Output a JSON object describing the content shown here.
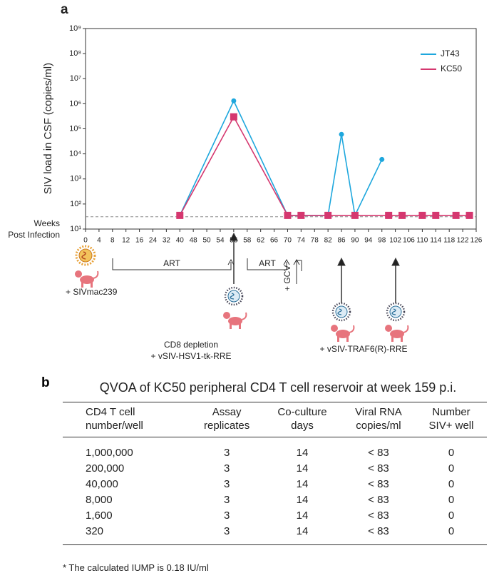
{
  "panel_labels": [
    "a",
    "b"
  ],
  "chart_data": {
    "type": "line",
    "y_label": "SIV load in CSF (copies/ml)",
    "x_label": [
      "Weeks",
      "Post Infection"
    ],
    "log_y": true,
    "ylim": [
      10,
      1000000000
    ],
    "yticks": [
      {
        "value": 10,
        "label": "10¹"
      },
      {
        "value": 100,
        "label": "10²"
      },
      {
        "value": 1000,
        "label": "10³"
      },
      {
        "value": 10000,
        "label": "10⁴"
      },
      {
        "value": 100000,
        "label": "10⁵"
      },
      {
        "value": 1000000,
        "label": "10⁶"
      },
      {
        "value": 10000000,
        "label": "10⁷"
      },
      {
        "value": 100000000,
        "label": "10⁸"
      },
      {
        "value": 1000000000,
        "label": "10⁹"
      }
    ],
    "xlim": [
      0,
      126
    ],
    "xticks": [
      0,
      4,
      8,
      12,
      16,
      24,
      32,
      40,
      48,
      50,
      54,
      56,
      58,
      62,
      66,
      70,
      74,
      78,
      82,
      86,
      90,
      94,
      98,
      102,
      106,
      110,
      114,
      118,
      122,
      126
    ],
    "detection_limit": 31,
    "legend": "upper right",
    "series": [
      {
        "name": "JT43",
        "color": "#1ea7dd",
        "marker": "circle",
        "x": [
          40,
          56,
          70,
          82,
          86,
          90,
          98
        ],
        "values": [
          35,
          1300000,
          35,
          35,
          60000,
          35,
          6000
        ]
      },
      {
        "name": "KC50",
        "color": "#d5376f",
        "marker": "square",
        "x": [
          40,
          56,
          70,
          74,
          82,
          90,
          100,
          104,
          110,
          114,
          120,
          124
        ],
        "values": [
          35,
          300000,
          35,
          35,
          35,
          35,
          35,
          35,
          35,
          35,
          35,
          35
        ]
      }
    ]
  },
  "annotations": {
    "art_1": "ART",
    "art_2": "ART",
    "infection": "+ SIVmac239",
    "cd8_depletion": [
      "CD8 depletion",
      "+ vSIV-HSV1-tk-RRE"
    ],
    "gcv": "+ GCV",
    "vaccine": "+ vSIV-TRAF6(R)-RRE"
  },
  "table": {
    "title": "QVOA of KC50 peripheral CD4 T cell reservoir at week 159 p.i.",
    "headers": [
      [
        "CD4 T cell",
        "number/well"
      ],
      [
        "Assay",
        "replicates"
      ],
      [
        "Co-culture",
        "days"
      ],
      [
        "Viral RNA",
        "copies/ml"
      ],
      [
        "Number",
        "SIV+ well"
      ]
    ],
    "rows": [
      [
        "1,000,000",
        "3",
        "14",
        "< 83",
        "0"
      ],
      [
        "200,000",
        "3",
        "14",
        "< 83",
        "0"
      ],
      [
        "40,000",
        "3",
        "14",
        "< 83",
        "0"
      ],
      [
        "8,000",
        "3",
        "14",
        "< 83",
        "0"
      ],
      [
        "1,600",
        "3",
        "14",
        "< 83",
        "0"
      ],
      [
        "320",
        "3",
        "14",
        "< 83",
        "0"
      ]
    ],
    "footnote": "* The calculated IUMP is 0.18 IU/ml"
  }
}
